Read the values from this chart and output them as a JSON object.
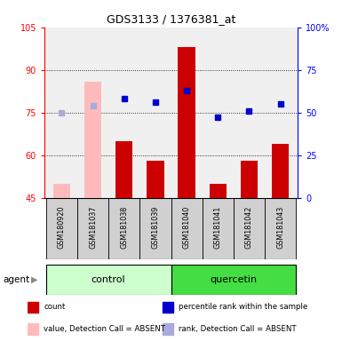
{
  "title": "GDS3133 / 1376381_at",
  "samples": [
    "GSM180920",
    "GSM181037",
    "GSM181038",
    "GSM181039",
    "GSM181040",
    "GSM181041",
    "GSM181042",
    "GSM181043"
  ],
  "bar_values": [
    50,
    86,
    65,
    58,
    98,
    50,
    58,
    64
  ],
  "bar_absent": [
    true,
    true,
    false,
    false,
    false,
    false,
    false,
    false
  ],
  "rank_values": [
    50,
    54,
    58,
    56,
    63,
    47,
    51,
    55
  ],
  "rank_absent": [
    true,
    true,
    false,
    false,
    false,
    false,
    false,
    false
  ],
  "ylim_left": [
    45,
    105
  ],
  "ylim_right": [
    0,
    100
  ],
  "yticks_left": [
    45,
    60,
    75,
    90,
    105
  ],
  "yticks_right": [
    0,
    25,
    50,
    75,
    100
  ],
  "bar_color_normal": "#cc0000",
  "bar_color_absent": "#ffbbbb",
  "rank_color_normal": "#0000cc",
  "rank_color_absent": "#aaaadd",
  "grid_lines": [
    60,
    75,
    90
  ],
  "group_labels": [
    "control",
    "quercetin"
  ],
  "group_colors": [
    "#ccffcc",
    "#44dd44"
  ],
  "control_count": 4,
  "quercetin_count": 4,
  "legend_labels": [
    "count",
    "percentile rank within the sample",
    "value, Detection Call = ABSENT",
    "rank, Detection Call = ABSENT"
  ],
  "legend_colors": [
    "#cc0000",
    "#0000cc",
    "#ffbbbb",
    "#aaaadd"
  ],
  "plot_bg": "#f0f0f0",
  "sample_bg": "#d0d0d0"
}
